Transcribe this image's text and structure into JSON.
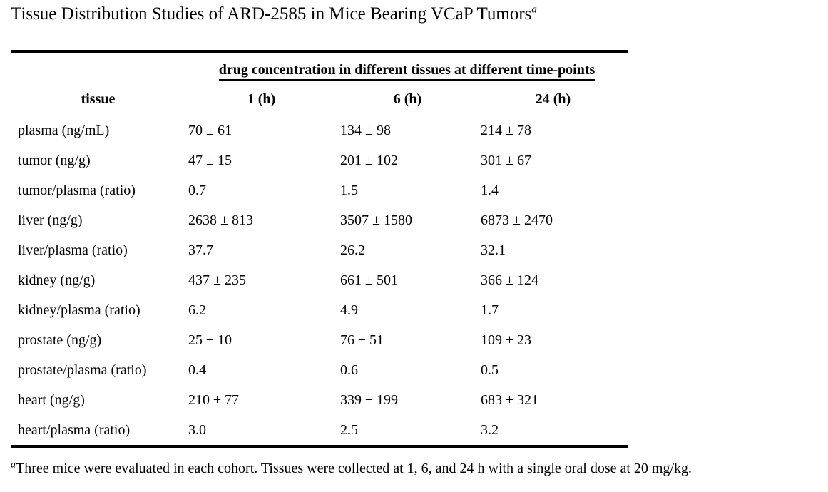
{
  "title": {
    "text": "Tissue Distribution Studies of ARD-2585 in Mice Bearing VCaP Tumors",
    "superscript": "a"
  },
  "table": {
    "spanner": "drug concentration in different tissues at different time-points",
    "columns": [
      "tissue",
      "1 (h)",
      "6 (h)",
      "24 (h)"
    ],
    "rows": [
      {
        "tissue": "plasma (ng/mL)",
        "values": [
          "70 ± 61",
          "134 ± 98",
          "214 ± 78"
        ]
      },
      {
        "tissue": "tumor (ng/g)",
        "values": [
          "47 ± 15",
          "201 ± 102",
          "301 ± 67"
        ]
      },
      {
        "tissue": "tumor/plasma (ratio)",
        "values": [
          "0.7",
          "1.5",
          "1.4"
        ]
      },
      {
        "tissue": "liver (ng/g)",
        "values": [
          "2638 ± 813",
          "3507 ± 1580",
          "6873 ± 2470"
        ]
      },
      {
        "tissue": "liver/plasma (ratio)",
        "values": [
          "37.7",
          "26.2",
          "32.1"
        ]
      },
      {
        "tissue": "kidney (ng/g)",
        "values": [
          "437 ± 235",
          "661 ± 501",
          "366 ± 124"
        ]
      },
      {
        "tissue": "kidney/plasma (ratio)",
        "values": [
          "6.2",
          "4.9",
          "1.7"
        ]
      },
      {
        "tissue": "prostate (ng/g)",
        "values": [
          "25 ± 10",
          "76 ± 51",
          "109 ± 23"
        ]
      },
      {
        "tissue": "prostate/plasma (ratio)",
        "values": [
          "0.4",
          "0.6",
          "0.5"
        ]
      },
      {
        "tissue": "heart (ng/g)",
        "values": [
          "210 ± 77",
          "339 ± 199",
          "683 ± 321"
        ]
      },
      {
        "tissue": "heart/plasma (ratio)",
        "values": [
          "3.0",
          "2.5",
          "3.2"
        ]
      }
    ]
  },
  "footnote": {
    "marker": "a",
    "text": "Three mice were evaluated in each cohort. Tissues were collected at 1, 6, and 24 h with a single oral dose at 20 mg/kg."
  },
  "colors": {
    "text": "#000000",
    "background": "#ffffff",
    "rule": "#000000"
  }
}
